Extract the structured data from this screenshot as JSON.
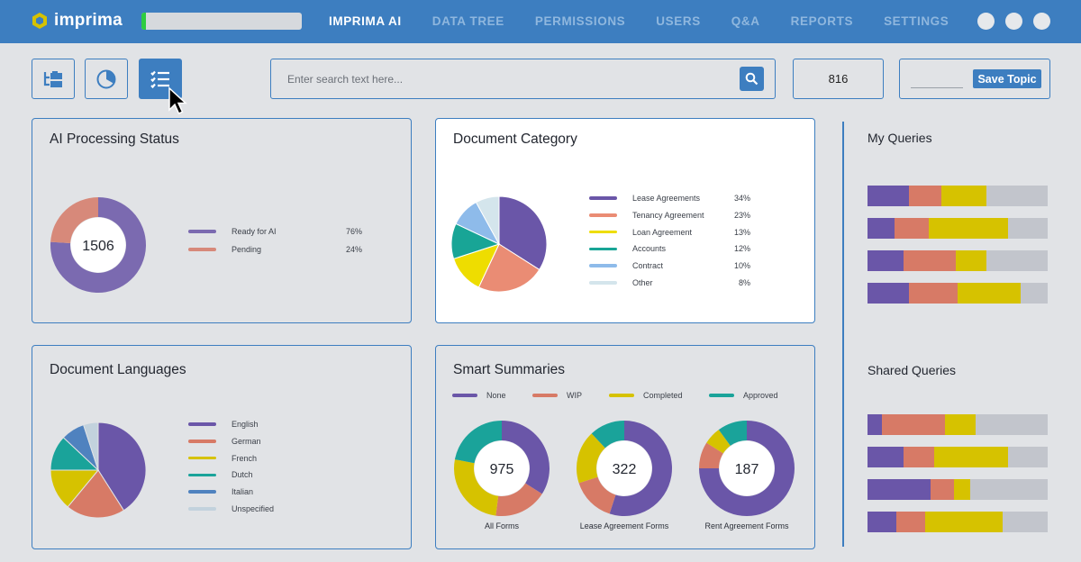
{
  "app": {
    "logo_text": "imprima",
    "upload_progress": 0.03
  },
  "nav": {
    "items": [
      "IMPRIMA AI",
      "DATA TREE",
      "PERMISSIONS",
      "USERS",
      "Q&A",
      "REPORTS",
      "SETTINGS"
    ],
    "active_index": 0
  },
  "toolbar": {
    "buttons": [
      {
        "icon": "tree-icon",
        "active": false
      },
      {
        "icon": "pie-chart-icon",
        "active": false
      },
      {
        "icon": "list-icon",
        "active": true
      }
    ],
    "search_placeholder": "Enter search text here...",
    "search_icon": "search-icon",
    "document_count": "816",
    "save_topic_label": "Save Topic"
  },
  "colors": {
    "accent": "#3d7ec0",
    "purple": "#6a56a8",
    "salmon": "#d77a66",
    "yellow": "#d6c200",
    "teal": "#1aa39a",
    "lightblue": "#8fb9e6",
    "grey": "#c2c5cc"
  },
  "ai_status": {
    "title": "AI Processing Status",
    "center_value": "1506",
    "legend": [
      {
        "label": "Ready for AI",
        "value": "76%",
        "color": "#7b6ab0"
      },
      {
        "label": "Pending",
        "value": "24%",
        "color": "#d7897a"
      }
    ]
  },
  "doc_category": {
    "title": "Document Category",
    "legend": [
      {
        "label": "Lease Agreements",
        "value": "34%",
        "color": "#6a56a8"
      },
      {
        "label": "Tenancy Agreement",
        "value": "23%",
        "color": "#ea8c74"
      },
      {
        "label": "Loan Agreement",
        "value": "13%",
        "color": "#eedd00"
      },
      {
        "label": "Accounts",
        "value": "12%",
        "color": "#18a596"
      },
      {
        "label": "Contract",
        "value": "10%",
        "color": "#8ebbea"
      },
      {
        "label": "Other",
        "value": "8%",
        "color": "#d4e5ec"
      }
    ]
  },
  "doc_languages": {
    "title": "Document Languages",
    "legend": [
      {
        "label": "English",
        "color": "#6a56a8"
      },
      {
        "label": "German",
        "color": "#d77a66"
      },
      {
        "label": "French",
        "color": "#d6c200"
      },
      {
        "label": "Dutch",
        "color": "#1aa39a"
      },
      {
        "label": "Italian",
        "color": "#4f82bf"
      },
      {
        "label": "Unspecified",
        "color": "#c2d2dd"
      }
    ]
  },
  "smart_summaries": {
    "title": "Smart Summaries",
    "legend": [
      {
        "label": "None",
        "color": "#6a56a8"
      },
      {
        "label": "WIP",
        "color": "#d77a66"
      },
      {
        "label": "Completed",
        "color": "#d6c200"
      },
      {
        "label": "Approved",
        "color": "#1aa39a"
      }
    ],
    "donuts": [
      {
        "label": "All Forms",
        "value": "975"
      },
      {
        "label": "Lease Agreement Forms",
        "value": "322"
      },
      {
        "label": "Rent Agreement Forms",
        "value": "187"
      }
    ]
  },
  "my_queries": {
    "title": "My Queries",
    "bars": [
      [
        0.23,
        0.18,
        0.25,
        0.34
      ],
      [
        0.15,
        0.19,
        0.44,
        0.22
      ],
      [
        0.2,
        0.29,
        0.17,
        0.34
      ],
      [
        0.23,
        0.27,
        0.35,
        0.15
      ]
    ]
  },
  "shared_queries": {
    "title": "Shared Queries",
    "bars": [
      [
        0.08,
        0.35,
        0.17,
        0.4
      ],
      [
        0.2,
        0.17,
        0.41,
        0.22
      ],
      [
        0.35,
        0.13,
        0.09,
        0.43
      ],
      [
        0.16,
        0.16,
        0.43,
        0.25
      ]
    ]
  },
  "chart_data": [
    {
      "type": "pie",
      "title": "AI Processing Status",
      "labels": [
        "Ready for AI",
        "Pending"
      ],
      "values": [
        76,
        24
      ],
      "donut": true,
      "center_label": "1506"
    },
    {
      "type": "pie",
      "title": "Document Category",
      "labels": [
        "Lease Agreements",
        "Tenancy Agreement",
        "Loan Agreement",
        "Accounts",
        "Contract",
        "Other"
      ],
      "values": [
        34,
        23,
        13,
        12,
        10,
        8
      ]
    },
    {
      "type": "pie",
      "title": "Document Languages",
      "labels": [
        "English",
        "German",
        "French",
        "Dutch",
        "Italian",
        "Unspecified"
      ],
      "values": [
        41,
        20,
        14,
        12,
        8,
        5
      ]
    },
    {
      "type": "pie",
      "title": "All Forms",
      "labels": [
        "None",
        "WIP",
        "Completed",
        "Approved"
      ],
      "values": [
        34,
        18,
        26,
        22
      ],
      "donut": true,
      "center_label": "975"
    },
    {
      "type": "pie",
      "title": "Lease Agreement Forms",
      "labels": [
        "None",
        "WIP",
        "Completed",
        "Approved"
      ],
      "values": [
        55,
        15,
        18,
        12
      ],
      "donut": true,
      "center_label": "322"
    },
    {
      "type": "pie",
      "title": "Rent Agreement Forms",
      "labels": [
        "None",
        "WIP",
        "Completed",
        "Approved"
      ],
      "values": [
        75,
        9,
        6,
        10
      ],
      "donut": true,
      "center_label": "187"
    }
  ]
}
